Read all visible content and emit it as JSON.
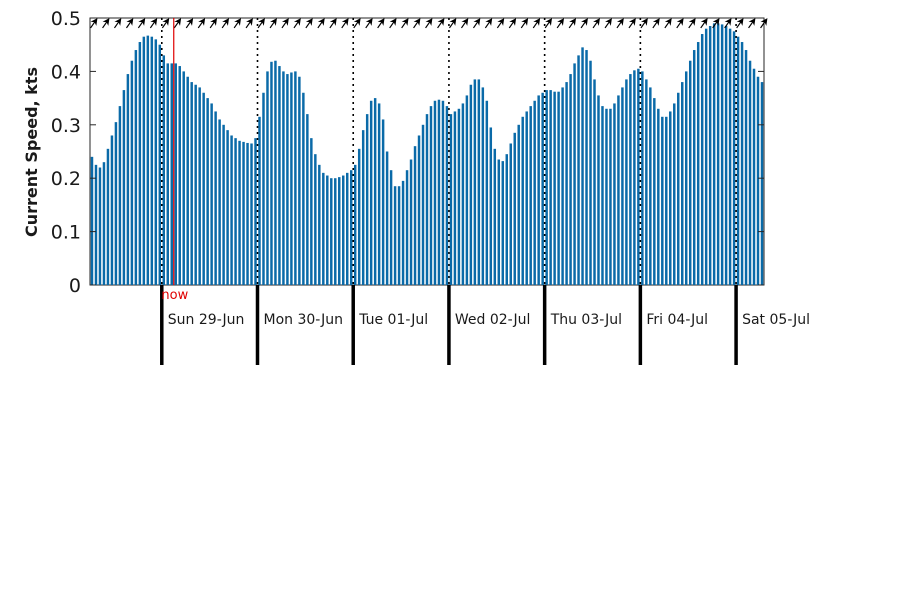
{
  "chart_data": {
    "type": "bar",
    "ylabel": "Current Speed, kts",
    "ylim": [
      0,
      0.5
    ],
    "yticks": [
      0,
      0.1,
      0.2,
      0.3,
      0.4,
      0.5
    ],
    "ytick_labels": [
      "0",
      "0.1",
      "0.2",
      "0.3",
      "0.4",
      "0.5"
    ],
    "bar_color": "#0a6aa8",
    "now_color": "#e00000",
    "x_unit": "hour",
    "x_start": "2025-06-28 01:00",
    "now_label": "now",
    "now_at_hour": 3,
    "days": [
      {
        "label": "Sun 29-Jun",
        "start_hour": 0
      },
      {
        "label": "Mon 30-Jun",
        "start_hour": 24
      },
      {
        "label": "Tue 01-Jul",
        "start_hour": 48
      },
      {
        "label": "Wed 02-Jul",
        "start_hour": 72
      },
      {
        "label": "Thu 03-Jul",
        "start_hour": 96
      },
      {
        "label": "Fri 04-Jul",
        "start_hour": 120
      },
      {
        "label": "Sat 05-Jul",
        "start_hour": 144
      }
    ],
    "values": [
      0.24,
      0.225,
      0.22,
      0.23,
      0.255,
      0.28,
      0.305,
      0.335,
      0.365,
      0.395,
      0.42,
      0.44,
      0.455,
      0.465,
      0.467,
      0.465,
      0.46,
      0.45,
      0.43,
      0.415,
      0.415,
      0.415,
      0.41,
      0.4,
      0.39,
      0.38,
      0.375,
      0.37,
      0.36,
      0.35,
      0.34,
      0.325,
      0.31,
      0.3,
      0.29,
      0.28,
      0.275,
      0.27,
      0.268,
      0.266,
      0.265,
      0.275,
      0.315,
      0.36,
      0.4,
      0.418,
      0.42,
      0.41,
      0.4,
      0.395,
      0.398,
      0.4,
      0.39,
      0.36,
      0.32,
      0.275,
      0.245,
      0.225,
      0.21,
      0.205,
      0.2,
      0.2,
      0.202,
      0.205,
      0.21,
      0.215,
      0.225,
      0.255,
      0.29,
      0.32,
      0.345,
      0.35,
      0.34,
      0.31,
      0.25,
      0.215,
      0.185,
      0.185,
      0.195,
      0.215,
      0.235,
      0.26,
      0.28,
      0.3,
      0.32,
      0.335,
      0.345,
      0.347,
      0.345,
      0.335,
      0.32,
      0.325,
      0.33,
      0.34,
      0.355,
      0.375,
      0.385,
      0.385,
      0.37,
      0.345,
      0.295,
      0.255,
      0.235,
      0.232,
      0.245,
      0.265,
      0.285,
      0.3,
      0.315,
      0.325,
      0.335,
      0.345,
      0.355,
      0.36,
      0.365,
      0.365,
      0.362,
      0.362,
      0.37,
      0.38,
      0.395,
      0.415,
      0.43,
      0.445,
      0.44,
      0.42,
      0.385,
      0.355,
      0.335,
      0.33,
      0.33,
      0.34,
      0.355,
      0.37,
      0.385,
      0.395,
      0.402,
      0.405,
      0.4,
      0.385,
      0.37,
      0.35,
      0.33,
      0.315,
      0.315,
      0.325,
      0.34,
      0.36,
      0.38,
      0.4,
      0.42,
      0.44,
      0.455,
      0.47,
      0.48,
      0.485,
      0.49,
      0.49,
      0.488,
      0.485,
      0.48,
      0.475,
      0.465,
      0.455,
      0.44,
      0.42,
      0.405,
      0.39,
      0.38
    ],
    "direction_arrows": "northeast"
  }
}
